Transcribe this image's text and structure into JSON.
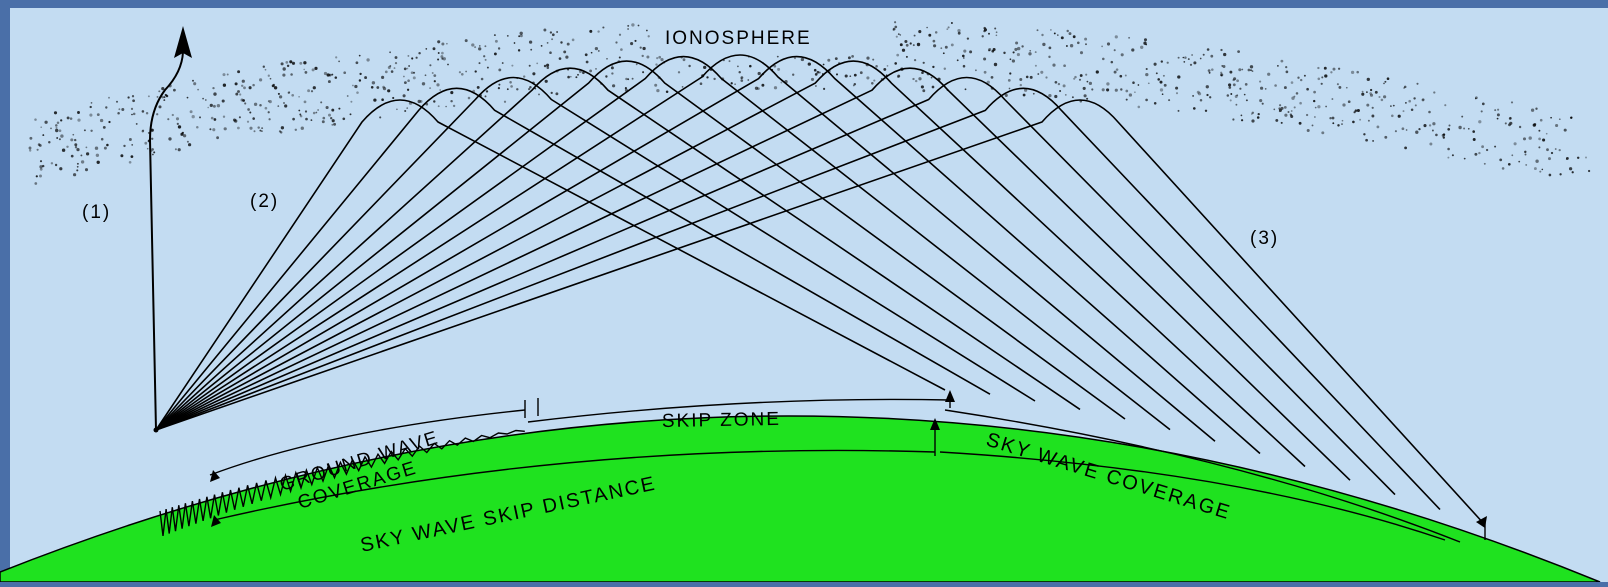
{
  "colors": {
    "frame": "#4a6fa8",
    "sky": "#c3dcf2",
    "earth": "#1fe21f",
    "ink": "#000000"
  },
  "labels": {
    "ionosphere": "IONOSPHERE",
    "direct_wave": "(1)",
    "reflected_wave": "(2)",
    "far_wave": "(3)",
    "skip_zone": "SKIP ZONE",
    "ground_wave_line1": "GROUND WAVE",
    "ground_wave_line2": "COVERAGE",
    "sky_wave_skip_distance": "SKY WAVE SKIP DISTANCE",
    "sky_wave_coverage": "SKY WAVE COVERAGE"
  },
  "icons": [
    "arrow-up-icon",
    "transmitter-icon"
  ]
}
